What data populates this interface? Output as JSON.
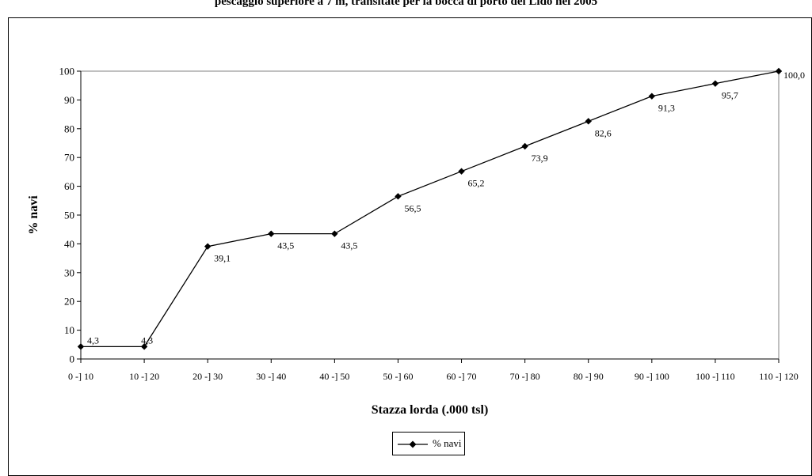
{
  "chart_data": {
    "type": "line",
    "title": "pescaggio superiore a 7 m, transitate per la bocca di porto del Lido nel 2005",
    "xlabel": "Stazza lorda (.000 tsl)",
    "ylabel": "% navi",
    "categories": [
      "0 -] 10",
      "10 -] 20",
      "20 -] 30",
      "30 -] 40",
      "40 -] 50",
      "50 -] 60",
      "60 -] 70",
      "70 -] 80",
      "80 -] 90",
      "90 -] 100",
      "100 -] 110",
      "110 -] 120"
    ],
    "series": [
      {
        "name": "% navi",
        "values": [
          4.3,
          4.3,
          39.1,
          43.5,
          43.5,
          56.5,
          65.2,
          73.9,
          82.6,
          91.3,
          95.7,
          100.0
        ],
        "labels": [
          "4,3",
          "4,3",
          "39,1",
          "43,5",
          "43,5",
          "56,5",
          "65,2",
          "73,9",
          "82,6",
          "91,3",
          "95,7",
          "100,0"
        ],
        "color": "#000000",
        "marker": "diamond"
      }
    ],
    "ylim": [
      0,
      100
    ],
    "yticks": [
      0,
      10,
      20,
      30,
      40,
      50,
      60,
      70,
      80,
      90,
      100
    ],
    "grid": false,
    "legend_position": "bottom"
  }
}
